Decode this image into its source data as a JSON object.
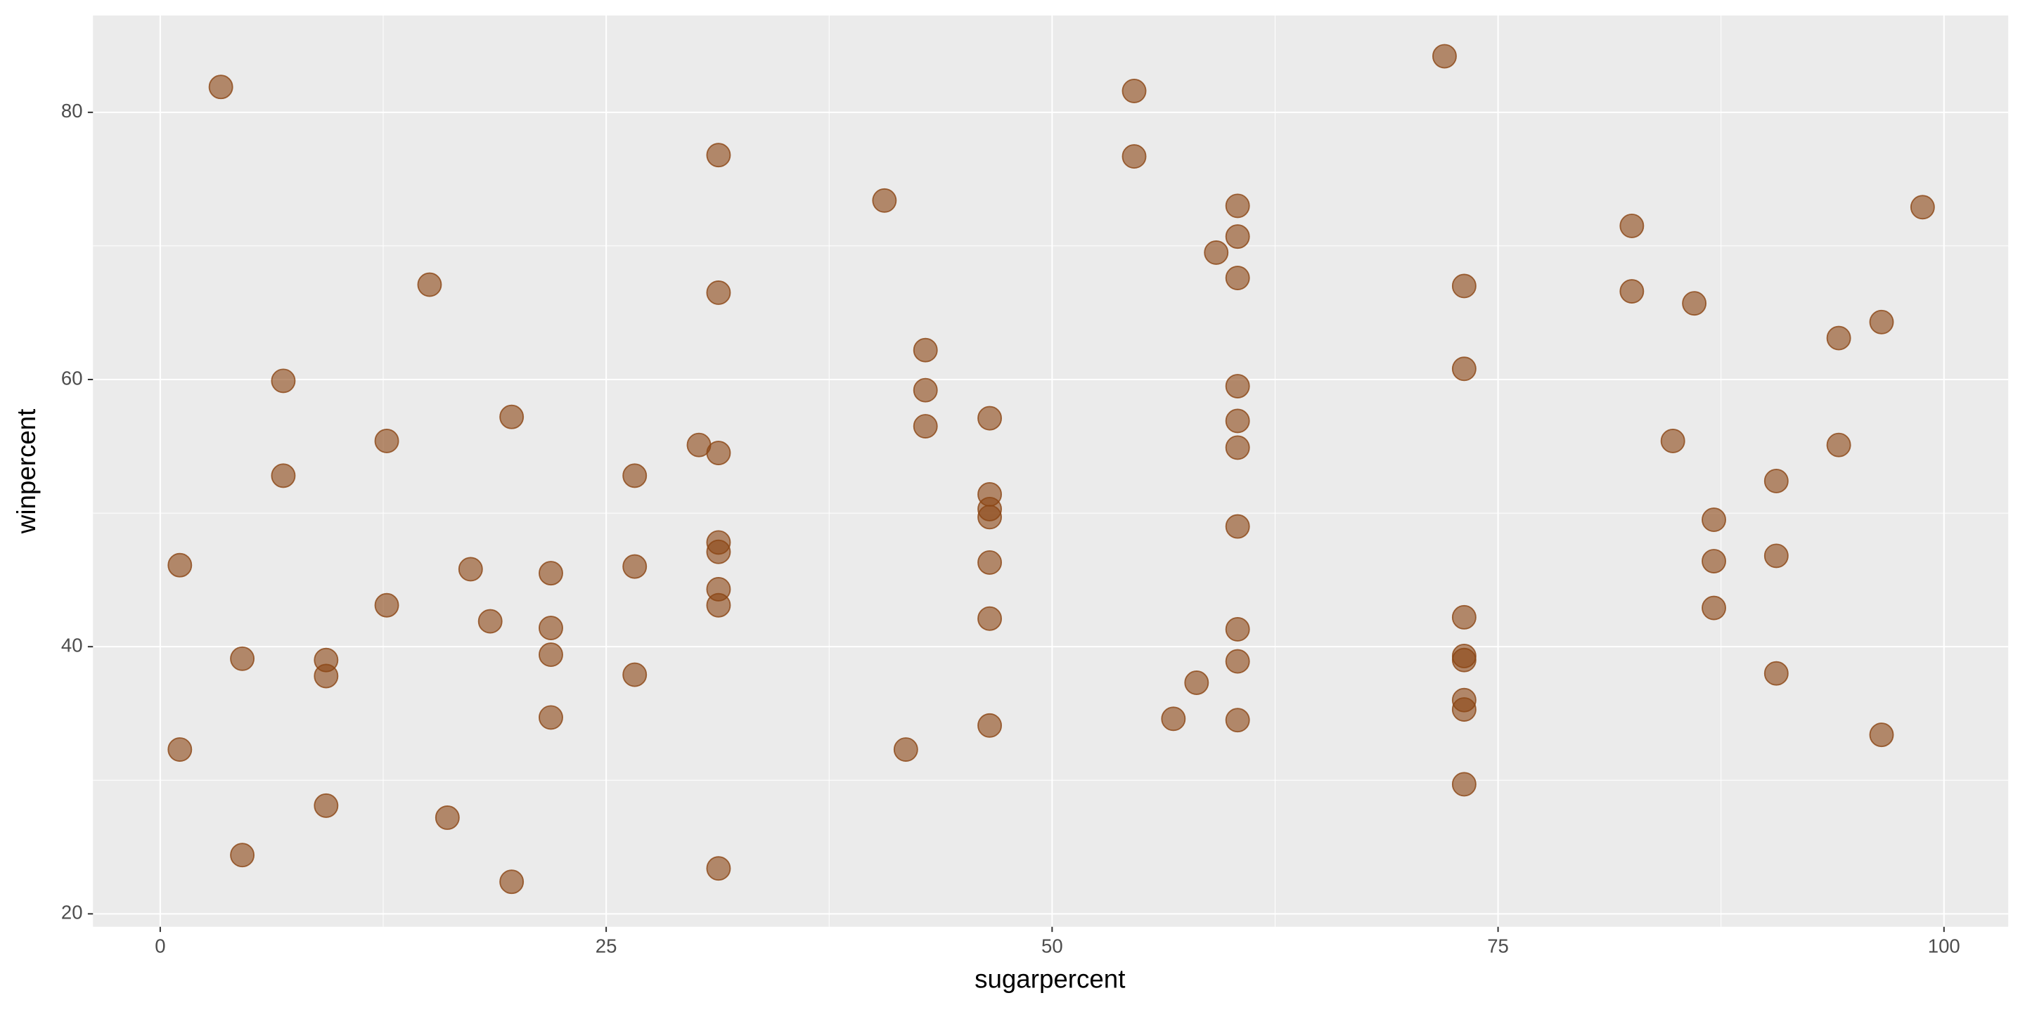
{
  "chart_data": {
    "type": "scatter",
    "x_label": "sugarpercent",
    "y_label": "winpercent",
    "color": "#8b4513",
    "xlim": [
      -3.77,
      103.6
    ],
    "ylim": [
      19.03,
      87.25
    ],
    "xticks": [
      0,
      25,
      50,
      75,
      100
    ],
    "yticks": [
      20,
      40,
      60,
      80
    ],
    "grid": true,
    "x": [
      3.4,
      1.1,
      1.1,
      4.6,
      4.6,
      6.9,
      6.9,
      9.3,
      9.3,
      9.3,
      12.7,
      12.7,
      15.1,
      16.1,
      17.4,
      18.5,
      19.7,
      19.7,
      21.9,
      21.9,
      21.9,
      21.9,
      26.6,
      26.6,
      26.6,
      30.2,
      31.3,
      31.3,
      31.3,
      31.3,
      31.3,
      31.3,
      31.3,
      31.3,
      40.6,
      41.8,
      42.9,
      42.9,
      42.9,
      46.5,
      46.5,
      46.5,
      46.5,
      46.5,
      46.5,
      46.5,
      54.6,
      54.6,
      56.8,
      58.1,
      59.2,
      60.4,
      60.4,
      60.4,
      60.4,
      60.4,
      60.4,
      60.4,
      60.4,
      60.4,
      60.4,
      72.0,
      73.1,
      73.1,
      73.1,
      73.1,
      73.1,
      73.1,
      73.1,
      73.1,
      82.5,
      82.5,
      84.8,
      86.0,
      87.1,
      87.1,
      87.1,
      90.6,
      90.6,
      90.6,
      94.1,
      94.1,
      96.5,
      96.5,
      98.8
    ],
    "values": [
      81.9,
      46.1,
      32.3,
      39.1,
      24.4,
      59.9,
      52.8,
      39.0,
      37.8,
      28.1,
      55.4,
      43.1,
      67.1,
      27.2,
      45.8,
      41.9,
      57.2,
      22.4,
      45.5,
      41.4,
      39.4,
      34.7,
      52.8,
      46.0,
      37.9,
      55.1,
      76.8,
      66.5,
      54.5,
      47.8,
      47.1,
      44.3,
      43.1,
      23.4,
      73.4,
      32.3,
      62.2,
      59.2,
      56.5,
      57.1,
      51.4,
      50.3,
      49.7,
      46.3,
      42.1,
      34.1,
      81.6,
      76.7,
      34.6,
      37.3,
      69.5,
      73.0,
      70.7,
      67.6,
      59.5,
      56.9,
      54.9,
      49.0,
      41.3,
      38.9,
      34.5,
      84.2,
      67.0,
      60.8,
      42.2,
      39.3,
      39.0,
      36.0,
      35.3,
      29.7,
      71.5,
      66.6,
      55.4,
      65.7,
      49.5,
      46.4,
      42.9,
      52.4,
      46.8,
      38.0,
      63.1,
      55.1,
      64.3,
      33.4,
      72.9
    ]
  }
}
